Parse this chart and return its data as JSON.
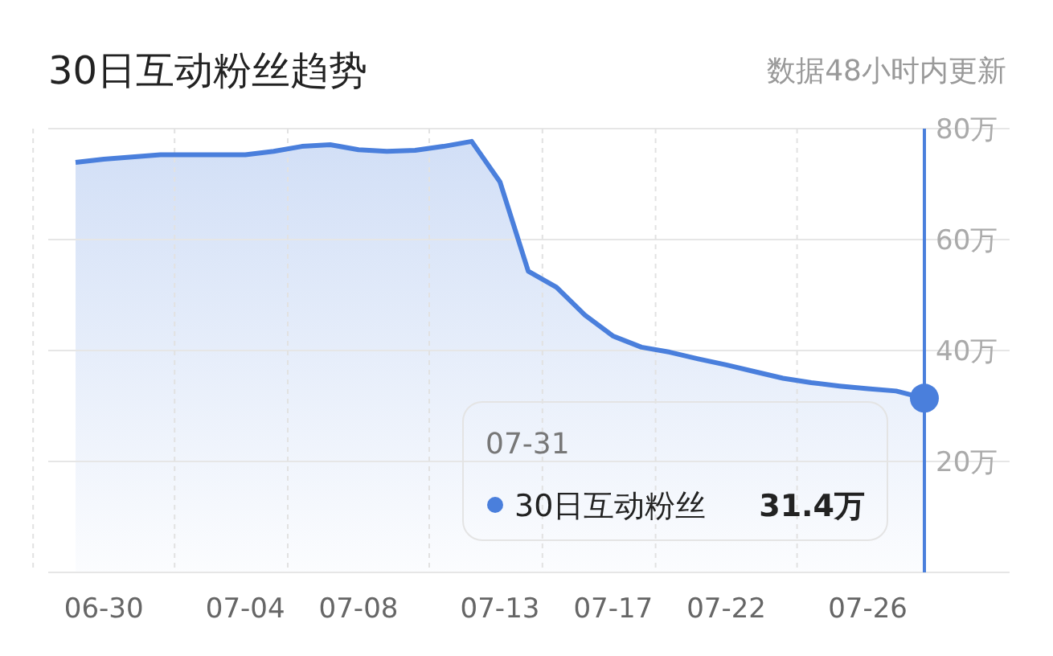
{
  "chart_data": {
    "type": "area",
    "title": "30日互动粉丝趋势",
    "subtitle": "数据48小时内更新",
    "categories": [
      null,
      "06-30",
      null,
      null,
      null,
      null,
      "07-04",
      null,
      null,
      null,
      "07-08",
      null,
      null,
      null,
      null,
      "07-13",
      null,
      null,
      null,
      "07-17",
      null,
      null,
      null,
      "07-22",
      null,
      null,
      null,
      null,
      "07-26",
      null,
      null
    ],
    "series": [
      {
        "name": "30日互动粉丝",
        "color": "#4a7fdc",
        "values": [
          73.9,
          74.5,
          74.9,
          75.3,
          75.3,
          75.3,
          75.3,
          75.9,
          76.8,
          77.1,
          76.2,
          75.9,
          76.1,
          76.8,
          77.7,
          70.4,
          54.3,
          51.4,
          46.4,
          42.6,
          40.6,
          39.7,
          38.5,
          37.4,
          36.2,
          35.0,
          34.2,
          33.6,
          33.1,
          32.7,
          31.4
        ],
        "value_labels": [
          null,
          null,
          null,
          null,
          null,
          null,
          null,
          null,
          null,
          null,
          null,
          null,
          null,
          null,
          null,
          null,
          null,
          null,
          null,
          null,
          null,
          null,
          null,
          null,
          null,
          null,
          null,
          null,
          null,
          null,
          "31.4万"
        ]
      }
    ],
    "ylim": [
      0,
      80
    ],
    "yticks": [
      {
        "value": 0,
        "label": null
      },
      {
        "value": 20,
        "label": "20万"
      },
      {
        "value": 40,
        "label": "40万"
      },
      {
        "value": 60,
        "label": "60万"
      },
      {
        "value": 80,
        "label": "80万"
      }
    ],
    "grid": true,
    "legend": "bottom right",
    "annotations": [
      "07-31"
    ]
  }
}
